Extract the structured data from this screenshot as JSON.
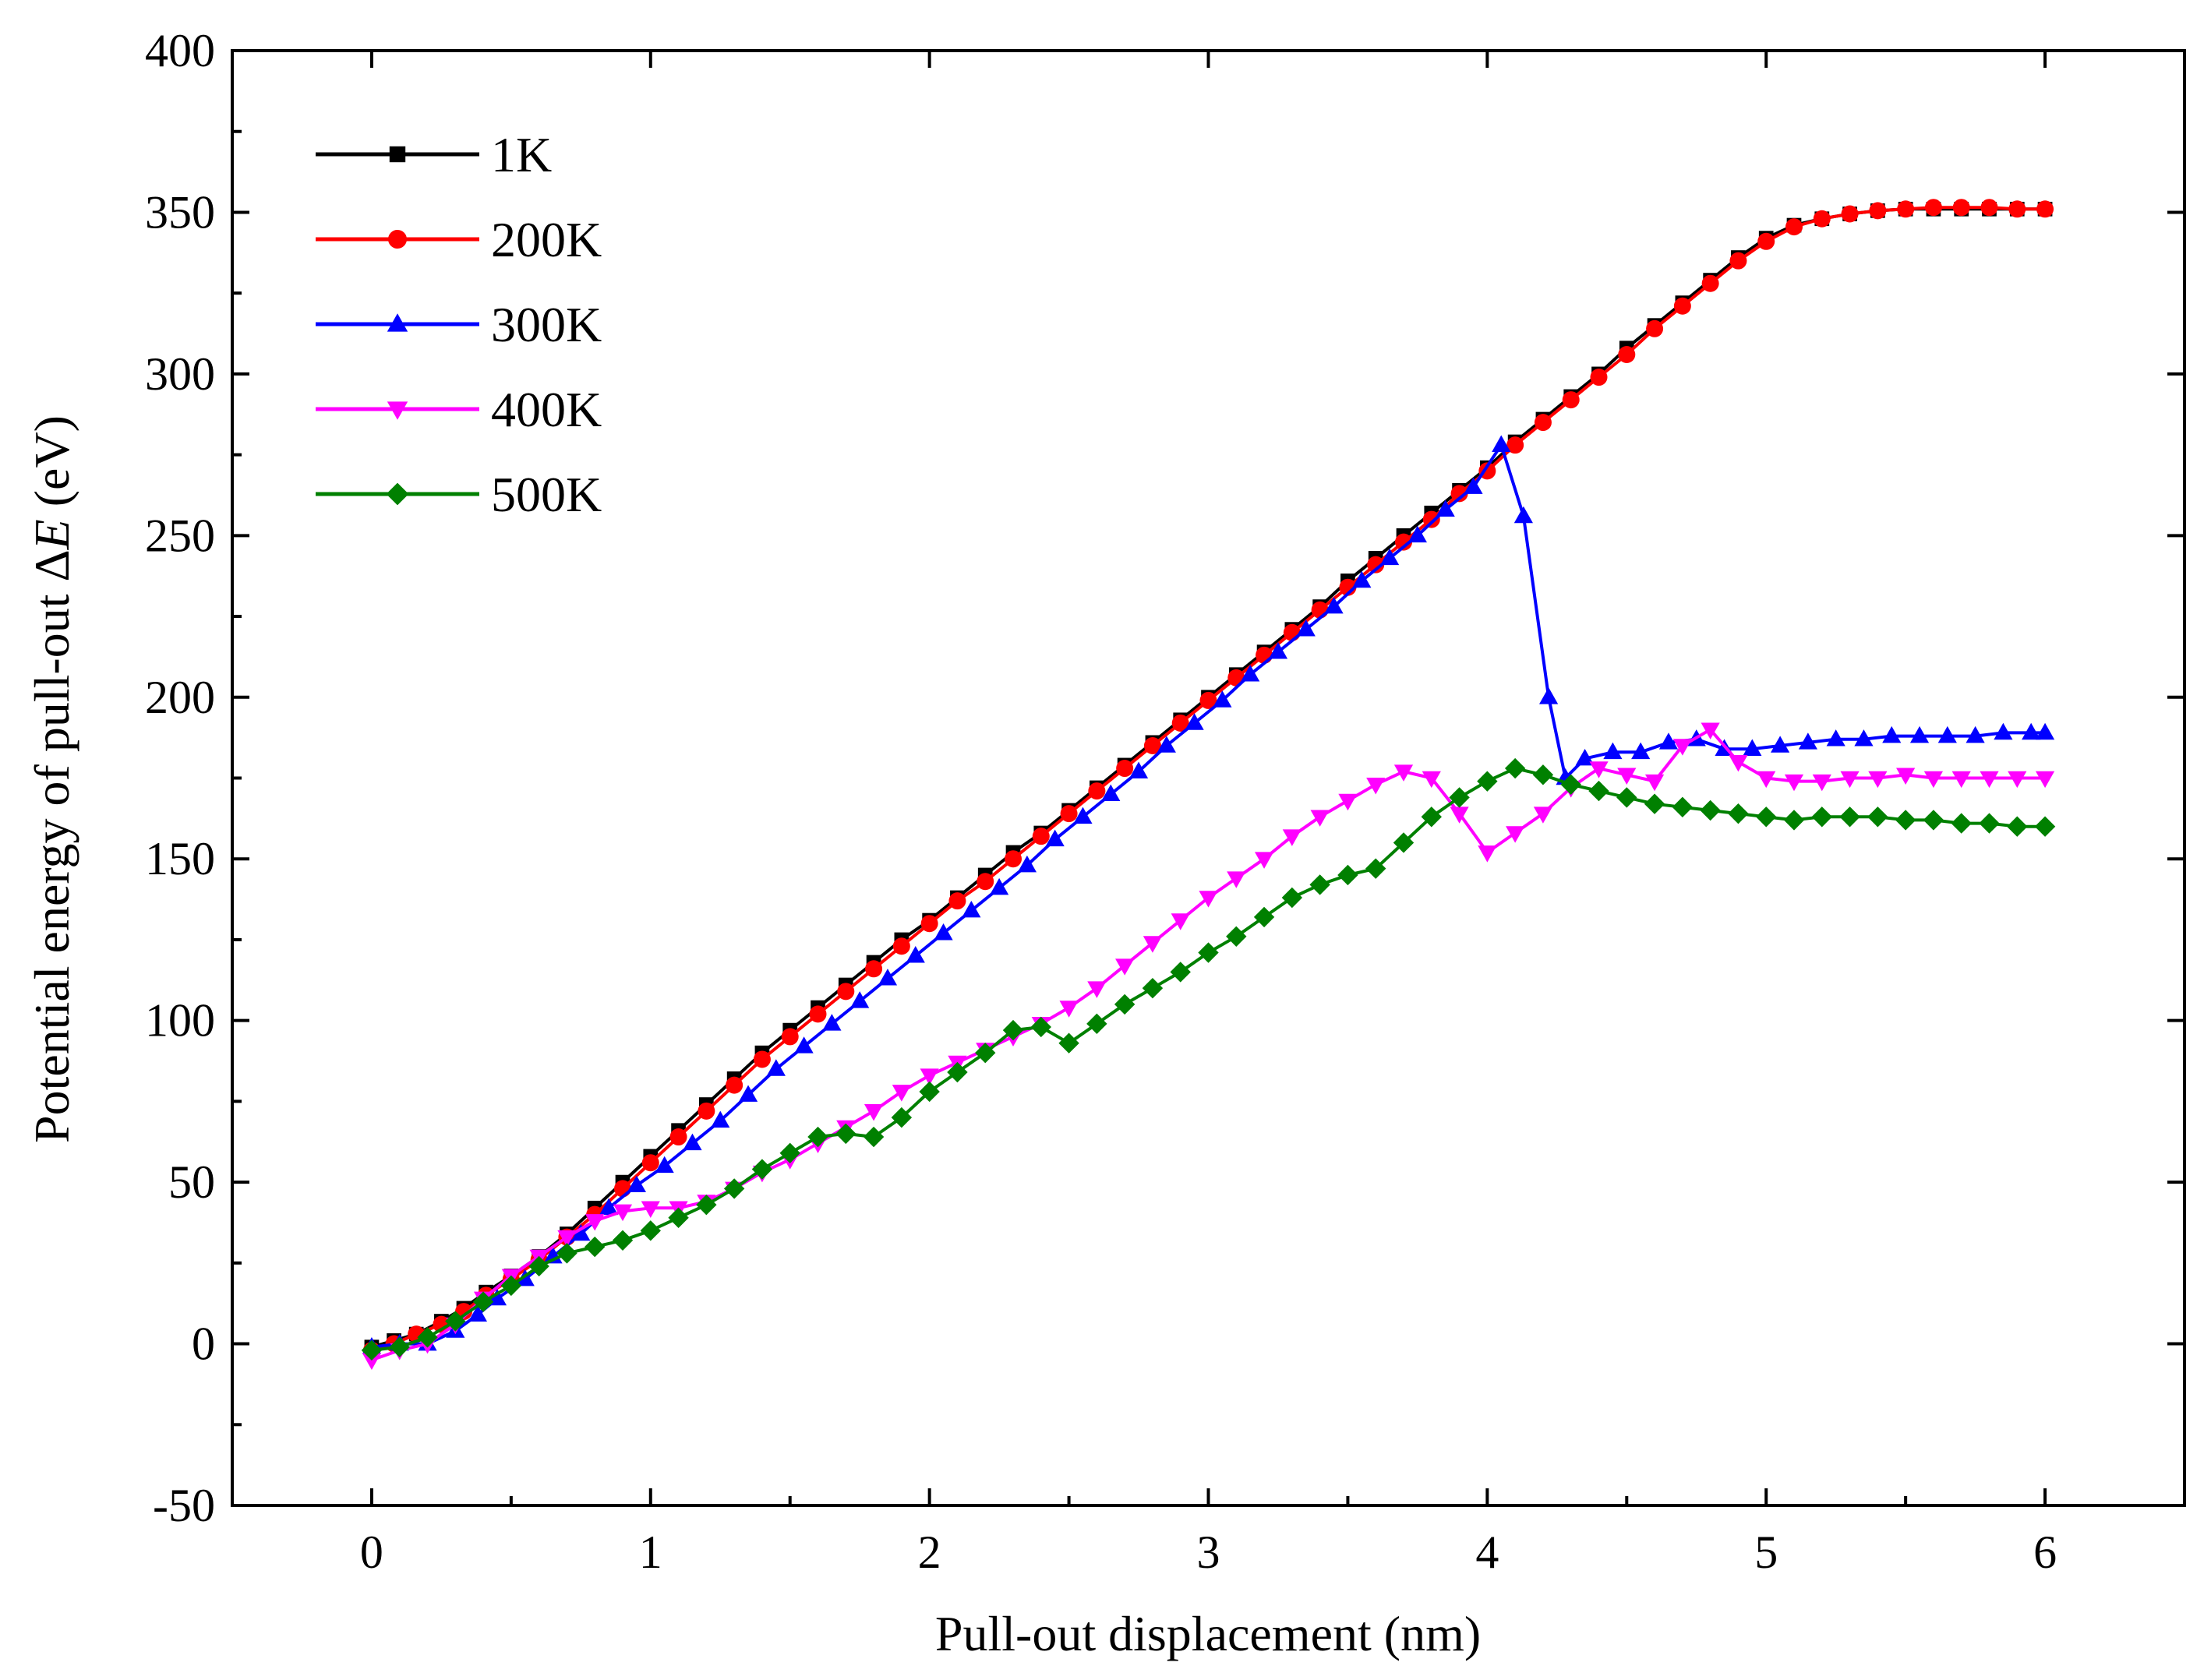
{
  "chart_data": {
    "type": "line",
    "title": "",
    "xlabel": "Pull-out displacement (nm)",
    "ylabel_prefix": "Potential energy of pull-out Δ",
    "ylabel_italic": "E",
    "ylabel_suffix": " (eV)",
    "xlim": [
      -0.5,
      6.5
    ],
    "ylim": [
      -50,
      400
    ],
    "xticks": [
      0,
      1,
      2,
      3,
      4,
      5,
      6
    ],
    "yticks": [
      -50,
      0,
      50,
      100,
      150,
      200,
      250,
      300,
      350,
      400
    ],
    "grid": false,
    "legend_position": "top-left",
    "series": [
      {
        "name": "1K",
        "color": "#000000",
        "marker": "square",
        "points": [
          [
            0,
            -1
          ],
          [
            0.08,
            1
          ],
          [
            0.16,
            3
          ],
          [
            0.25,
            7
          ],
          [
            0.33,
            11
          ],
          [
            0.41,
            16
          ],
          [
            0.5,
            21
          ],
          [
            0.6,
            27
          ],
          [
            0.7,
            34
          ],
          [
            0.8,
            42
          ],
          [
            0.9,
            50
          ],
          [
            1,
            58
          ],
          [
            1.1,
            66
          ],
          [
            1.2,
            74
          ],
          [
            1.3,
            82
          ],
          [
            1.4,
            90
          ],
          [
            1.5,
            97
          ],
          [
            1.6,
            104
          ],
          [
            1.7,
            111
          ],
          [
            1.8,
            118
          ],
          [
            1.9,
            125
          ],
          [
            2,
            131
          ],
          [
            2.1,
            138
          ],
          [
            2.2,
            145
          ],
          [
            2.3,
            152
          ],
          [
            2.4,
            158
          ],
          [
            2.5,
            165
          ],
          [
            2.6,
            172
          ],
          [
            2.7,
            179
          ],
          [
            2.8,
            186
          ],
          [
            2.9,
            193
          ],
          [
            3,
            200
          ],
          [
            3.1,
            207
          ],
          [
            3.2,
            214
          ],
          [
            3.3,
            221
          ],
          [
            3.4,
            228
          ],
          [
            3.5,
            236
          ],
          [
            3.6,
            243
          ],
          [
            3.7,
            250
          ],
          [
            3.8,
            257
          ],
          [
            3.9,
            264
          ],
          [
            4,
            271
          ],
          [
            4.1,
            279
          ],
          [
            4.2,
            286
          ],
          [
            4.3,
            293
          ],
          [
            4.4,
            300
          ],
          [
            4.5,
            308
          ],
          [
            4.6,
            315
          ],
          [
            4.7,
            322
          ],
          [
            4.8,
            329
          ],
          [
            4.9,
            336
          ],
          [
            5,
            342
          ],
          [
            5.1,
            346
          ],
          [
            5.2,
            348
          ],
          [
            5.3,
            349.5
          ],
          [
            5.4,
            350.5
          ],
          [
            5.5,
            351
          ],
          [
            5.6,
            351
          ],
          [
            5.7,
            351
          ],
          [
            5.8,
            351
          ],
          [
            5.9,
            351
          ],
          [
            6,
            351
          ]
        ]
      },
      {
        "name": "200K",
        "color": "#ff0000",
        "marker": "circle",
        "points": [
          [
            0,
            -2
          ],
          [
            0.08,
            0
          ],
          [
            0.16,
            3
          ],
          [
            0.25,
            6
          ],
          [
            0.33,
            10
          ],
          [
            0.41,
            15
          ],
          [
            0.5,
            20
          ],
          [
            0.6,
            26
          ],
          [
            0.7,
            33
          ],
          [
            0.8,
            40
          ],
          [
            0.9,
            48
          ],
          [
            1,
            56
          ],
          [
            1.1,
            64
          ],
          [
            1.2,
            72
          ],
          [
            1.3,
            80
          ],
          [
            1.4,
            88
          ],
          [
            1.5,
            95
          ],
          [
            1.6,
            102
          ],
          [
            1.7,
            109
          ],
          [
            1.8,
            116
          ],
          [
            1.9,
            123
          ],
          [
            2,
            130
          ],
          [
            2.1,
            137
          ],
          [
            2.2,
            143
          ],
          [
            2.3,
            150
          ],
          [
            2.4,
            157
          ],
          [
            2.5,
            164
          ],
          [
            2.6,
            171
          ],
          [
            2.7,
            178
          ],
          [
            2.8,
            185
          ],
          [
            2.9,
            192
          ],
          [
            3,
            199
          ],
          [
            3.1,
            206
          ],
          [
            3.2,
            213
          ],
          [
            3.3,
            220
          ],
          [
            3.4,
            227
          ],
          [
            3.5,
            234
          ],
          [
            3.6,
            241
          ],
          [
            3.7,
            248
          ],
          [
            3.8,
            255
          ],
          [
            3.9,
            263
          ],
          [
            4,
            270
          ],
          [
            4.1,
            278
          ],
          [
            4.2,
            285
          ],
          [
            4.3,
            292
          ],
          [
            4.4,
            299
          ],
          [
            4.5,
            306
          ],
          [
            4.6,
            314
          ],
          [
            4.7,
            321
          ],
          [
            4.8,
            328
          ],
          [
            4.9,
            335
          ],
          [
            5,
            341
          ],
          [
            5.1,
            345.5
          ],
          [
            5.2,
            348
          ],
          [
            5.3,
            349.5
          ],
          [
            5.4,
            350.5
          ],
          [
            5.5,
            351
          ],
          [
            5.6,
            351.5
          ],
          [
            5.7,
            351.5
          ],
          [
            5.8,
            351.5
          ],
          [
            5.9,
            351
          ],
          [
            6,
            351
          ]
        ]
      },
      {
        "name": "300K",
        "color": "#0000ff",
        "marker": "triangle-up",
        "points": [
          [
            0,
            -1
          ],
          [
            0.1,
            0
          ],
          [
            0.2,
            0
          ],
          [
            0.3,
            4
          ],
          [
            0.38,
            9
          ],
          [
            0.45,
            14
          ],
          [
            0.55,
            20
          ],
          [
            0.65,
            27
          ],
          [
            0.75,
            34
          ],
          [
            0.85,
            42
          ],
          [
            0.95,
            49
          ],
          [
            1.05,
            55
          ],
          [
            1.15,
            62
          ],
          [
            1.25,
            69
          ],
          [
            1.35,
            77
          ],
          [
            1.45,
            85
          ],
          [
            1.55,
            92
          ],
          [
            1.65,
            99
          ],
          [
            1.75,
            106
          ],
          [
            1.85,
            113
          ],
          [
            1.95,
            120
          ],
          [
            2.05,
            127
          ],
          [
            2.15,
            134
          ],
          [
            2.25,
            141
          ],
          [
            2.35,
            148
          ],
          [
            2.45,
            156
          ],
          [
            2.55,
            163
          ],
          [
            2.65,
            170
          ],
          [
            2.75,
            177
          ],
          [
            2.85,
            185
          ],
          [
            2.95,
            192
          ],
          [
            3.05,
            199
          ],
          [
            3.15,
            207
          ],
          [
            3.25,
            214
          ],
          [
            3.35,
            221
          ],
          [
            3.45,
            228
          ],
          [
            3.55,
            236
          ],
          [
            3.65,
            243
          ],
          [
            3.75,
            250
          ],
          [
            3.85,
            258
          ],
          [
            3.95,
            265
          ],
          [
            4.05,
            278
          ],
          [
            4.13,
            256
          ],
          [
            4.22,
            200
          ],
          [
            4.28,
            175
          ],
          [
            4.35,
            181
          ],
          [
            4.45,
            183
          ],
          [
            4.55,
            183
          ],
          [
            4.65,
            186
          ],
          [
            4.75,
            187
          ],
          [
            4.85,
            184
          ],
          [
            4.95,
            184
          ],
          [
            5.05,
            185
          ],
          [
            5.15,
            186
          ],
          [
            5.25,
            187
          ],
          [
            5.35,
            187
          ],
          [
            5.45,
            188
          ],
          [
            5.55,
            188
          ],
          [
            5.65,
            188
          ],
          [
            5.75,
            188
          ],
          [
            5.85,
            189
          ],
          [
            5.95,
            189
          ],
          [
            6,
            189
          ]
        ]
      },
      {
        "name": "400K",
        "color": "#ff00ff",
        "marker": "triangle-down",
        "points": [
          [
            0,
            -5
          ],
          [
            0.1,
            -2
          ],
          [
            0.2,
            0
          ],
          [
            0.3,
            6
          ],
          [
            0.4,
            14
          ],
          [
            0.5,
            21
          ],
          [
            0.6,
            27
          ],
          [
            0.7,
            33
          ],
          [
            0.8,
            38
          ],
          [
            0.9,
            41
          ],
          [
            1,
            42
          ],
          [
            1.1,
            42
          ],
          [
            1.2,
            44
          ],
          [
            1.3,
            48
          ],
          [
            1.4,
            53
          ],
          [
            1.5,
            57
          ],
          [
            1.6,
            62
          ],
          [
            1.7,
            67
          ],
          [
            1.8,
            72
          ],
          [
            1.9,
            78
          ],
          [
            2,
            83
          ],
          [
            2.1,
            87
          ],
          [
            2.2,
            91
          ],
          [
            2.3,
            95
          ],
          [
            2.4,
            99
          ],
          [
            2.5,
            104
          ],
          [
            2.6,
            110
          ],
          [
            2.7,
            117
          ],
          [
            2.8,
            124
          ],
          [
            2.9,
            131
          ],
          [
            3,
            138
          ],
          [
            3.1,
            144
          ],
          [
            3.2,
            150
          ],
          [
            3.3,
            157
          ],
          [
            3.4,
            163
          ],
          [
            3.5,
            168
          ],
          [
            3.6,
            173
          ],
          [
            3.7,
            177
          ],
          [
            3.8,
            175
          ],
          [
            3.9,
            164
          ],
          [
            4,
            152
          ],
          [
            4.1,
            158
          ],
          [
            4.2,
            164
          ],
          [
            4.3,
            172
          ],
          [
            4.4,
            178
          ],
          [
            4.5,
            176
          ],
          [
            4.6,
            174
          ],
          [
            4.7,
            185
          ],
          [
            4.8,
            190
          ],
          [
            4.9,
            180
          ],
          [
            5,
            175
          ],
          [
            5.1,
            174
          ],
          [
            5.2,
            174
          ],
          [
            5.3,
            175
          ],
          [
            5.4,
            175
          ],
          [
            5.5,
            176
          ],
          [
            5.6,
            175
          ],
          [
            5.7,
            175
          ],
          [
            5.8,
            175
          ],
          [
            5.9,
            175
          ],
          [
            6,
            175
          ]
        ]
      },
      {
        "name": "500K",
        "color": "#008000",
        "marker": "diamond",
        "points": [
          [
            0,
            -2
          ],
          [
            0.1,
            -1
          ],
          [
            0.2,
            2
          ],
          [
            0.3,
            7
          ],
          [
            0.4,
            13
          ],
          [
            0.5,
            18
          ],
          [
            0.6,
            24
          ],
          [
            0.7,
            28
          ],
          [
            0.8,
            30
          ],
          [
            0.9,
            32
          ],
          [
            1,
            35
          ],
          [
            1.1,
            39
          ],
          [
            1.2,
            43
          ],
          [
            1.3,
            48
          ],
          [
            1.4,
            54
          ],
          [
            1.5,
            59
          ],
          [
            1.6,
            64
          ],
          [
            1.7,
            65
          ],
          [
            1.8,
            64
          ],
          [
            1.9,
            70
          ],
          [
            2,
            78
          ],
          [
            2.1,
            84
          ],
          [
            2.2,
            90
          ],
          [
            2.3,
            97
          ],
          [
            2.4,
            98
          ],
          [
            2.5,
            93
          ],
          [
            2.6,
            99
          ],
          [
            2.7,
            105
          ],
          [
            2.8,
            110
          ],
          [
            2.9,
            115
          ],
          [
            3,
            121
          ],
          [
            3.1,
            126
          ],
          [
            3.2,
            132
          ],
          [
            3.3,
            138
          ],
          [
            3.4,
            142
          ],
          [
            3.5,
            145
          ],
          [
            3.6,
            147
          ],
          [
            3.7,
            155
          ],
          [
            3.8,
            163
          ],
          [
            3.9,
            169
          ],
          [
            4,
            174
          ],
          [
            4.1,
            178
          ],
          [
            4.2,
            176
          ],
          [
            4.3,
            173
          ],
          [
            4.4,
            171
          ],
          [
            4.5,
            169
          ],
          [
            4.6,
            167
          ],
          [
            4.7,
            166
          ],
          [
            4.8,
            165
          ],
          [
            4.9,
            164
          ],
          [
            5,
            163
          ],
          [
            5.1,
            162
          ],
          [
            5.2,
            163
          ],
          [
            5.3,
            163
          ],
          [
            5.4,
            163
          ],
          [
            5.5,
            162
          ],
          [
            5.6,
            162
          ],
          [
            5.7,
            161
          ],
          [
            5.8,
            161
          ],
          [
            5.9,
            160
          ],
          [
            6,
            160
          ]
        ]
      }
    ]
  }
}
